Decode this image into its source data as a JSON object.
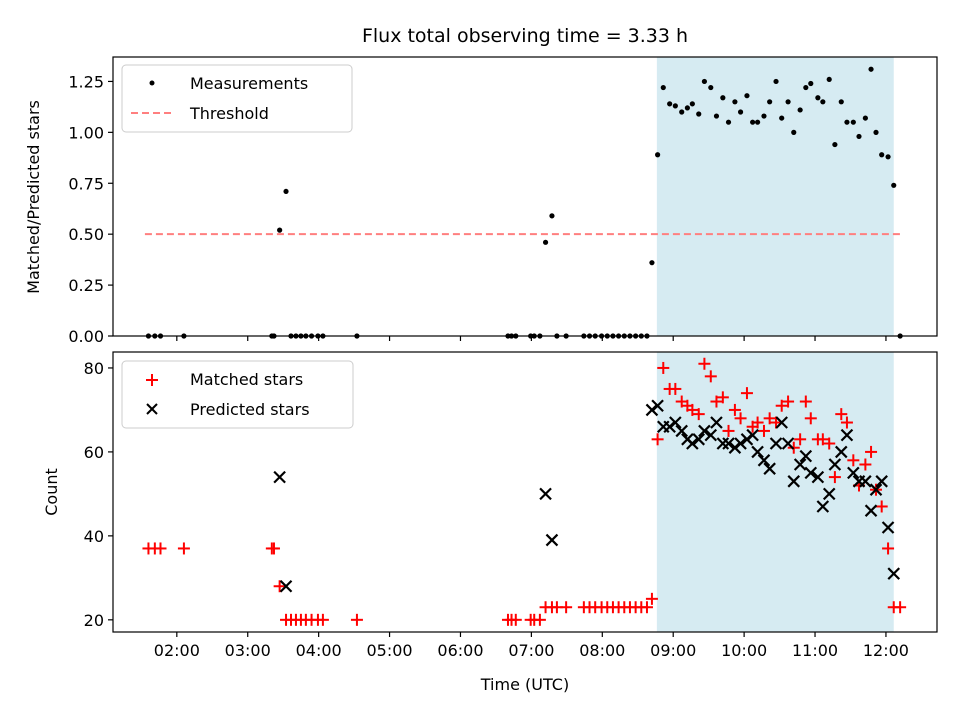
{
  "chart_data": [
    {
      "type": "scatter",
      "title": "Flux total observing time = 3.33 h",
      "xlabel": "",
      "ylabel": "Matched/Predicted stars",
      "xlim": [
        1.1,
        12.72
      ],
      "ylim": [
        0,
        1.37
      ],
      "xticks": [
        2,
        3,
        4,
        5,
        6,
        7,
        8,
        9,
        10,
        11,
        12
      ],
      "yticks": [
        0.0,
        0.25,
        0.5,
        0.75,
        1.0,
        1.25
      ],
      "ytick_labels": [
        "0.00",
        "0.25",
        "0.50",
        "0.75",
        "1.00",
        "1.25"
      ],
      "grid": false,
      "legend": {
        "position": "top-left",
        "entries": [
          "Measurements",
          "Threshold"
        ]
      },
      "shaded_region": {
        "x_start": 8.77,
        "x_end": 12.11,
        "color": "#add8e6"
      },
      "threshold": {
        "label": "Threshold",
        "y": 0.5,
        "x_start": 1.55,
        "x_end": 12.2,
        "color": "#ff7f7f"
      },
      "series": [
        {
          "name": "Measurements",
          "color": "#000000",
          "x": [
            1.6,
            1.69,
            1.77,
            2.1,
            3.34,
            3.37,
            3.45,
            3.54,
            3.61,
            3.68,
            3.75,
            3.82,
            3.9,
            3.99,
            4.06,
            4.54,
            6.67,
            6.72,
            6.78,
            6.99,
            7.04,
            7.12,
            7.2,
            7.29,
            7.36,
            7.49,
            7.74,
            7.82,
            7.9,
            7.99,
            8.07,
            8.15,
            8.23,
            8.31,
            8.39,
            8.47,
            8.55,
            8.63,
            8.7,
            8.78,
            8.86,
            8.95,
            9.03,
            9.12,
            9.2,
            9.27,
            9.36,
            9.44,
            9.53,
            9.61,
            9.7,
            9.78,
            9.87,
            9.95,
            10.04,
            10.12,
            10.19,
            10.28,
            10.36,
            10.45,
            10.53,
            10.62,
            10.7,
            10.79,
            10.87,
            10.94,
            11.04,
            11.11,
            11.2,
            11.28,
            11.37,
            11.45,
            11.54,
            11.62,
            11.71,
            11.79,
            11.86,
            11.94,
            12.03,
            12.11,
            12.2
          ],
          "y": [
            0,
            0,
            0,
            0,
            0,
            0,
            0.52,
            0.71,
            0,
            0,
            0,
            0,
            0,
            0,
            0,
            0,
            0,
            0,
            0,
            0,
            0,
            0,
            0.46,
            0.59,
            0,
            0,
            0,
            0,
            0,
            0,
            0,
            0,
            0,
            0,
            0,
            0,
            0,
            0,
            0.36,
            0.89,
            1.22,
            1.14,
            1.13,
            1.1,
            1.12,
            1.14,
            1.09,
            1.25,
            1.22,
            1.08,
            1.17,
            1.05,
            1.15,
            1.1,
            1.18,
            1.05,
            1.05,
            1.08,
            1.15,
            1.25,
            1.07,
            1.15,
            1.0,
            1.11,
            1.22,
            1.24,
            1.17,
            1.15,
            1.26,
            0.94,
            1.15,
            1.05,
            1.05,
            0.98,
            1.07,
            1.31,
            1.0,
            0.89,
            0.88,
            0.74,
            0.0
          ]
        }
      ]
    },
    {
      "type": "scatter",
      "title": "",
      "xlabel": "Time (UTC)",
      "ylabel": "Count",
      "xlim": [
        1.1,
        12.72
      ],
      "ylim": [
        17.1,
        83.8
      ],
      "xticks": [
        2,
        3,
        4,
        5,
        6,
        7,
        8,
        9,
        10,
        11,
        12
      ],
      "xtick_labels": [
        "02:00",
        "03:00",
        "04:00",
        "05:00",
        "06:00",
        "07:00",
        "08:00",
        "09:00",
        "10:00",
        "11:00",
        "12:00"
      ],
      "yticks": [
        20,
        40,
        60,
        80
      ],
      "ytick_labels": [
        "20",
        "40",
        "60",
        "80"
      ],
      "grid": false,
      "legend": {
        "position": "top-left",
        "entries": [
          "Matched stars",
          "Predicted stars"
        ]
      },
      "shaded_region": {
        "x_start": 8.77,
        "x_end": 12.11,
        "color": "#add8e6"
      },
      "series": [
        {
          "name": "Matched stars",
          "marker": "+",
          "color": "#ff0000",
          "x": [
            1.6,
            1.69,
            1.77,
            2.1,
            3.34,
            3.37,
            3.45,
            3.54,
            3.61,
            3.68,
            3.75,
            3.82,
            3.9,
            3.99,
            4.06,
            4.54,
            6.67,
            6.72,
            6.78,
            6.99,
            7.04,
            7.12,
            7.2,
            7.29,
            7.36,
            7.49,
            7.74,
            7.82,
            7.9,
            7.99,
            8.07,
            8.15,
            8.23,
            8.31,
            8.39,
            8.47,
            8.55,
            8.63,
            8.7,
            8.78,
            8.86,
            8.95,
            9.03,
            9.12,
            9.2,
            9.27,
            9.36,
            9.44,
            9.53,
            9.61,
            9.7,
            9.78,
            9.87,
            9.95,
            10.04,
            10.12,
            10.19,
            10.28,
            10.36,
            10.45,
            10.53,
            10.62,
            10.7,
            10.79,
            10.87,
            10.94,
            11.04,
            11.11,
            11.2,
            11.28,
            11.37,
            11.45,
            11.54,
            11.62,
            11.71,
            11.79,
            11.86,
            11.94,
            12.03,
            12.11,
            12.2
          ],
          "y": [
            37,
            37,
            37,
            37,
            37,
            37,
            28,
            20,
            20,
            20,
            20,
            20,
            20,
            20,
            20,
            20,
            20,
            20,
            20,
            20,
            20,
            20,
            23,
            23,
            23,
            23,
            23,
            23,
            23,
            23,
            23,
            23,
            23,
            23,
            23,
            23,
            23,
            23,
            25,
            63,
            80,
            75,
            75,
            72,
            71,
            70,
            69,
            81,
            78,
            72,
            73,
            65,
            70,
            68,
            74,
            66,
            67,
            65,
            68,
            67,
            71,
            72,
            61,
            63,
            72,
            68,
            63,
            63,
            62,
            54,
            69,
            67,
            58,
            52,
            57,
            60,
            51,
            47,
            37,
            23,
            23
          ]
        },
        {
          "name": "Predicted stars",
          "marker": "x",
          "color": "#000000",
          "x": [
            3.45,
            3.54,
            7.2,
            7.29,
            8.7,
            8.78,
            8.86,
            8.95,
            9.03,
            9.12,
            9.2,
            9.27,
            9.36,
            9.44,
            9.53,
            9.61,
            9.7,
            9.78,
            9.87,
            9.95,
            10.04,
            10.12,
            10.19,
            10.28,
            10.36,
            10.45,
            10.53,
            10.62,
            10.7,
            10.79,
            10.87,
            10.94,
            11.04,
            11.11,
            11.2,
            11.28,
            11.37,
            11.45,
            11.54,
            11.62,
            11.71,
            11.79,
            11.86,
            11.94,
            12.03,
            12.11
          ],
          "y": [
            54,
            28,
            50,
            39,
            70,
            71,
            66,
            66,
            67,
            65,
            63,
            62,
            63,
            65,
            64,
            67,
            62,
            62,
            61,
            62,
            63,
            64,
            60,
            58,
            56,
            62,
            67,
            62,
            53,
            57,
            59,
            55,
            54,
            47,
            50,
            57,
            60,
            64,
            55,
            53,
            53,
            46,
            51,
            53,
            42,
            31
          ]
        }
      ]
    }
  ]
}
